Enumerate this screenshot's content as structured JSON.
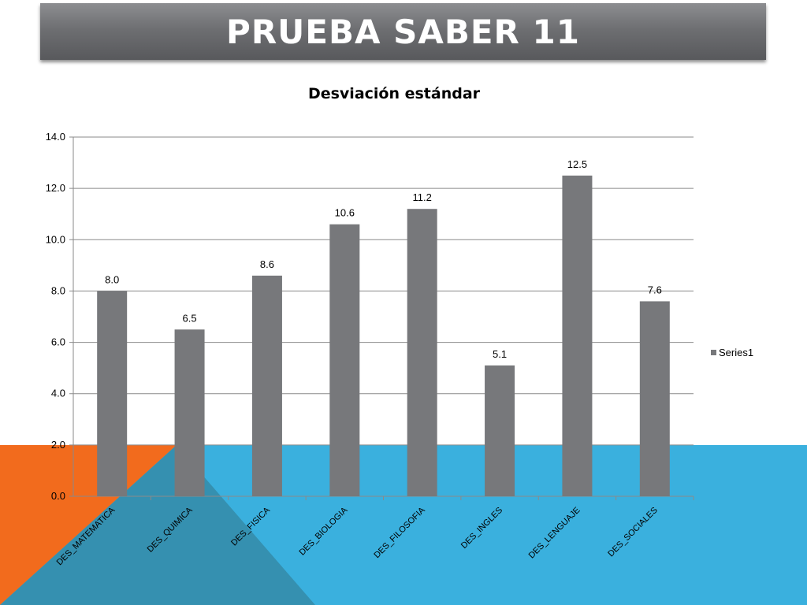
{
  "slide": {
    "title": "PRUEBA SABER 11"
  },
  "colors": {
    "bar": "#77787b",
    "grid": "#8a8a8a",
    "orange": "#f26b1d",
    "blue": "#3ab0de",
    "blue_dark": "#3590b0"
  },
  "chart_data": {
    "type": "bar",
    "title": "Desviación estándar",
    "xlabel": "",
    "ylabel": "",
    "categories": [
      "DES_MATEMATICA",
      "DES_QUIMICA",
      "DES_FISICA",
      "DES_BIOLOGIA",
      "DES_FILOSOFIA",
      "DES_INGLES",
      "DES_LENGUAJE",
      "DES_SOCIALES"
    ],
    "series": [
      {
        "name": "Series1",
        "values": [
          8.0,
          6.5,
          8.6,
          10.6,
          11.2,
          5.1,
          12.5,
          7.6
        ],
        "labels": [
          "8.0",
          "6.5",
          "8.6",
          "10.6",
          "11.2",
          "5.1",
          "12.5",
          "7.6"
        ]
      }
    ],
    "ylim": [
      0,
      14
    ],
    "yticks": [
      "0.0",
      "2.0",
      "4.0",
      "6.0",
      "8.0",
      "10.0",
      "12.0",
      "14.0"
    ],
    "grid": true,
    "legend": "right"
  }
}
